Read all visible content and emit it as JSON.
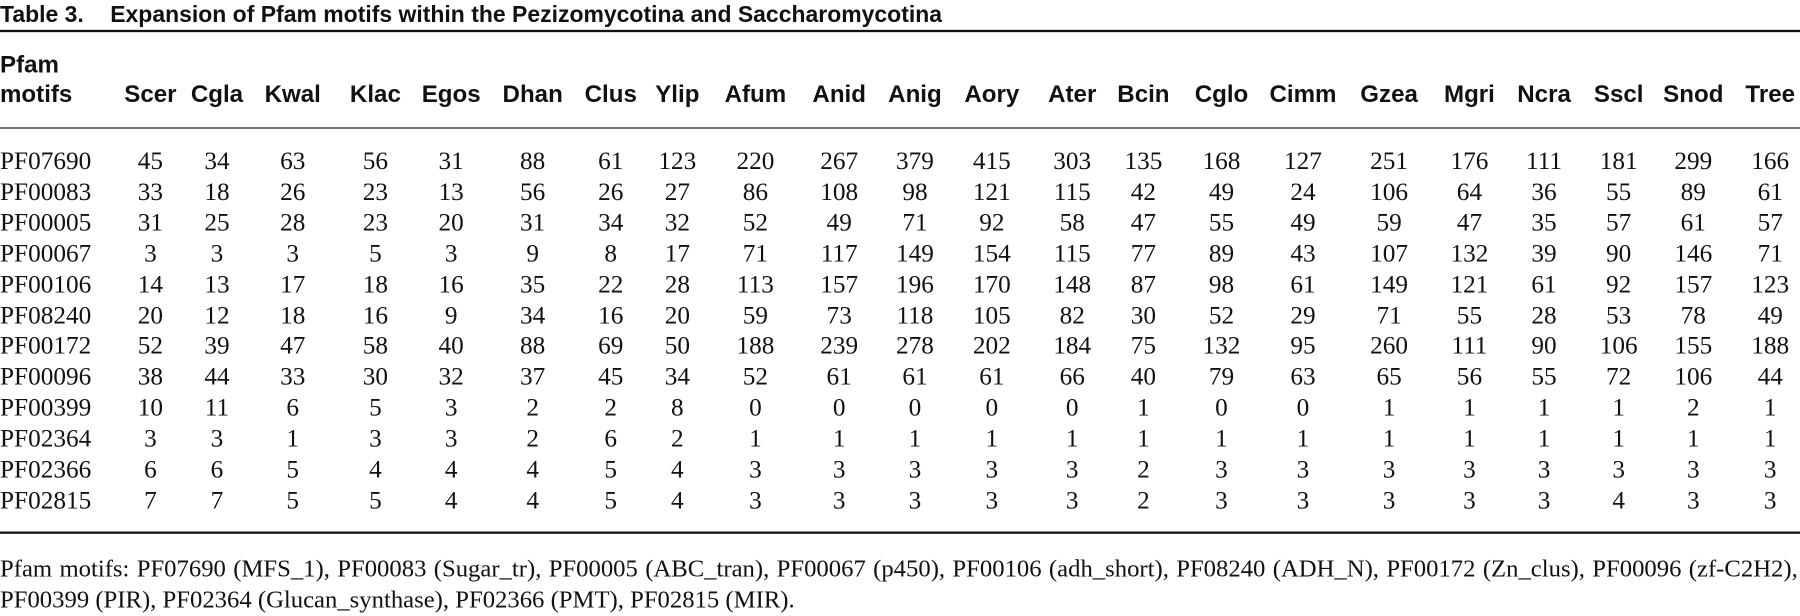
{
  "title": {
    "label": "Table 3.",
    "text": "Expansion of Pfam motifs within the Pezizomycotina and Saccharomycotina"
  },
  "table": {
    "header": [
      "Pfam motifs",
      "Scer",
      "Cgla",
      "Kwal",
      "Klac",
      "Egos",
      "Dhan",
      "Clus",
      "Ylip",
      "Afum",
      "Anid",
      "Anig",
      "Aory",
      "Ater",
      "Bcin",
      "Cglo",
      "Cimm",
      "Gzea",
      "Mgri",
      "Ncra",
      "Sscl",
      "Snod",
      "Tree"
    ],
    "rows": [
      [
        "PF07690",
        45,
        34,
        63,
        56,
        31,
        88,
        61,
        123,
        220,
        267,
        379,
        415,
        303,
        135,
        168,
        127,
        251,
        176,
        111,
        181,
        299,
        166
      ],
      [
        "PF00083",
        33,
        18,
        26,
        23,
        13,
        56,
        26,
        27,
        86,
        108,
        98,
        121,
        115,
        42,
        49,
        24,
        106,
        64,
        36,
        55,
        89,
        61
      ],
      [
        "PF00005",
        31,
        25,
        28,
        23,
        20,
        31,
        34,
        32,
        52,
        49,
        71,
        92,
        58,
        47,
        55,
        49,
        59,
        47,
        35,
        57,
        61,
        57
      ],
      [
        "PF00067",
        3,
        3,
        3,
        5,
        3,
        9,
        8,
        17,
        71,
        117,
        149,
        154,
        115,
        77,
        89,
        43,
        107,
        132,
        39,
        90,
        146,
        71
      ],
      [
        "PF00106",
        14,
        13,
        17,
        18,
        16,
        35,
        22,
        28,
        113,
        157,
        196,
        170,
        148,
        87,
        98,
        61,
        149,
        121,
        61,
        92,
        157,
        123
      ],
      [
        "PF08240",
        20,
        12,
        18,
        16,
        9,
        34,
        16,
        20,
        59,
        73,
        118,
        105,
        82,
        30,
        52,
        29,
        71,
        55,
        28,
        53,
        78,
        49
      ],
      [
        "PF00172",
        52,
        39,
        47,
        58,
        40,
        88,
        69,
        50,
        188,
        239,
        278,
        202,
        184,
        75,
        132,
        95,
        260,
        111,
        90,
        106,
        155,
        188
      ],
      [
        "PF00096",
        38,
        44,
        33,
        30,
        32,
        37,
        45,
        34,
        52,
        61,
        61,
        61,
        66,
        40,
        79,
        63,
        65,
        56,
        55,
        72,
        106,
        44
      ],
      [
        "PF00399",
        10,
        11,
        6,
        5,
        3,
        2,
        2,
        8,
        0,
        0,
        0,
        0,
        0,
        1,
        0,
        0,
        1,
        1,
        1,
        1,
        2,
        1
      ],
      [
        "PF02364",
        3,
        3,
        1,
        3,
        3,
        2,
        6,
        2,
        1,
        1,
        1,
        1,
        1,
        1,
        1,
        1,
        1,
        1,
        1,
        1,
        1,
        1
      ],
      [
        "PF02366",
        6,
        6,
        5,
        4,
        4,
        4,
        5,
        4,
        3,
        3,
        3,
        3,
        3,
        2,
        3,
        3,
        3,
        3,
        3,
        3,
        3,
        3
      ],
      [
        "PF02815",
        7,
        7,
        5,
        5,
        4,
        4,
        5,
        4,
        3,
        3,
        3,
        3,
        3,
        2,
        3,
        3,
        3,
        3,
        3,
        4,
        3,
        3
      ]
    ]
  },
  "footnote": "Pfam motifs: PF07690 (MFS_1), PF00083 (Sugar_tr), PF00005 (ABC_tran), PF00067 (p450), PF00106 (adh_short), PF08240 (ADH_N), PF00172 (Zn_clus), PF00096 (zf-C2H2), PF00399 (PIR), PF02364 (Glucan_synthase), PF02366 (PMT), PF02815 (MIR)."
}
